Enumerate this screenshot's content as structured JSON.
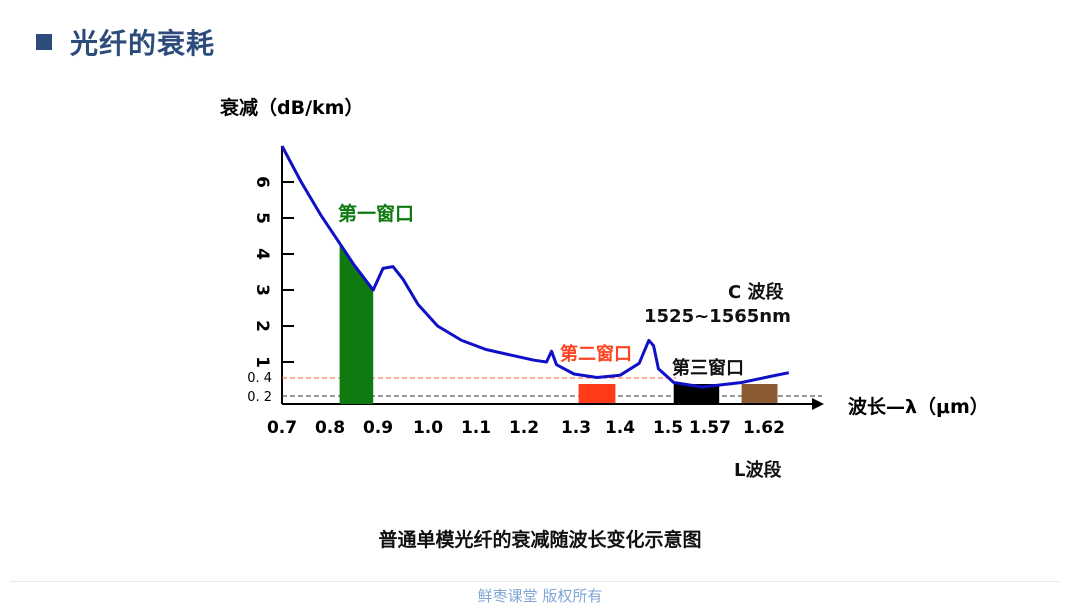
{
  "header": {
    "title": "光纤的衰耗"
  },
  "caption": "普通单模光纤的衰减随波长变化示意图",
  "footer": "鲜枣课堂  版权所有",
  "colors": {
    "title": "#2d4c7c",
    "curve": "#1010c8",
    "window1": "#0f7a0f",
    "window2": "#ff3b1a",
    "window3": "#000000",
    "l_band": "#8a5a33",
    "ref_red": "#ff5a3a",
    "ref_dark": "#333333",
    "window2_label": "#ff4422"
  },
  "chart_data": {
    "type": "line",
    "title": "普通单模光纤的衰减随波长变化示意图",
    "ylabel": "衰减（dB/km）",
    "xlabel": "波长—λ（μm）",
    "x_ticks": [
      "0.7",
      "0.8",
      "0.9",
      "1.0",
      "1.1",
      "1.2",
      "1.3",
      "1.4",
      "1.5",
      "1.57",
      "1.62"
    ],
    "y_ticks": [
      "6",
      "5",
      "4",
      "3",
      "2",
      "1"
    ],
    "y_ref_ticks": [
      "0. 4",
      "0. 2"
    ],
    "series": [
      {
        "points": [
          [
            0.7,
            7.0
          ],
          [
            0.74,
            6.0
          ],
          [
            0.78,
            5.1
          ],
          [
            0.82,
            4.3
          ],
          [
            0.85,
            3.7
          ],
          [
            0.89,
            3.0
          ],
          [
            0.91,
            3.6
          ],
          [
            0.93,
            3.65
          ],
          [
            0.95,
            3.3
          ],
          [
            0.98,
            2.6
          ],
          [
            1.02,
            2.0
          ],
          [
            1.07,
            1.6
          ],
          [
            1.12,
            1.35
          ],
          [
            1.17,
            1.2
          ],
          [
            1.22,
            1.05
          ],
          [
            1.245,
            1.0
          ],
          [
            1.255,
            1.3
          ],
          [
            1.265,
            0.9
          ],
          [
            1.3,
            0.55
          ],
          [
            1.35,
            0.42
          ],
          [
            1.4,
            0.5
          ],
          [
            1.44,
            0.95
          ],
          [
            1.46,
            1.6
          ],
          [
            1.47,
            1.45
          ],
          [
            1.48,
            0.75
          ],
          [
            1.51,
            0.35
          ],
          [
            1.56,
            0.3
          ],
          [
            1.6,
            0.35
          ],
          [
            1.64,
            0.48
          ],
          [
            1.675,
            0.6
          ]
        ]
      }
    ],
    "windows": [
      {
        "label": "第一窗口",
        "x_start": 0.82,
        "x_end": 0.89,
        "kind": "area"
      },
      {
        "label": "第二窗口",
        "x_start": 1.31,
        "x_end": 1.39,
        "kind": "band"
      },
      {
        "label": "第三窗口",
        "x_start": 1.51,
        "x_end": 1.58,
        "kind": "band"
      },
      {
        "label": "",
        "x_start": 1.6,
        "x_end": 1.65,
        "kind": "band"
      }
    ],
    "annotations": {
      "c_band": "C 波段",
      "c_band_range": "1525~1565nm",
      "l_band": "L波段"
    },
    "reference_lines": [
      0.4,
      0.2
    ],
    "grid": false,
    "legend": "none"
  }
}
